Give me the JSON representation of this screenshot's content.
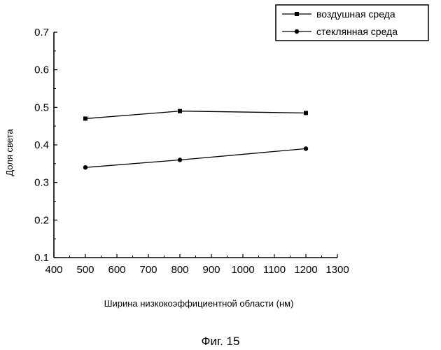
{
  "chart_data": {
    "type": "line",
    "title": "",
    "xlabel": "Ширина низкокоэффициентной области (нм)",
    "ylabel": "Доля света",
    "xlim": [
      400,
      1300
    ],
    "ylim": [
      0.1,
      0.7
    ],
    "x_ticks": [
      "400",
      "500",
      "600",
      "700",
      "800",
      "900",
      "1000",
      "1100",
      "1200",
      "1300"
    ],
    "y_ticks": [
      "0.1",
      "0.2",
      "0.3",
      "0.4",
      "0.5",
      "0.6",
      "0.7"
    ],
    "legend_position": "top-right",
    "grid": false,
    "series": [
      {
        "name": "воздушная среда",
        "marker": "square",
        "x": [
          500,
          800,
          1200
        ],
        "y": [
          0.47,
          0.49,
          0.485
        ]
      },
      {
        "name": "стеклянная среда",
        "marker": "circle",
        "x": [
          500,
          800,
          1200
        ],
        "y": [
          0.34,
          0.36,
          0.39
        ]
      }
    ]
  },
  "figure": {
    "caption": "Фиг. 15"
  }
}
